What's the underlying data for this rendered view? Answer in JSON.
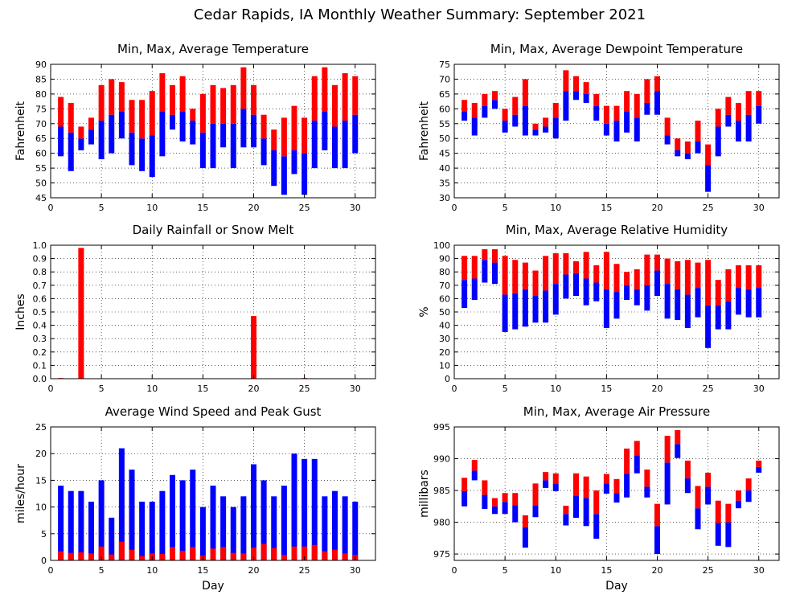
{
  "title": "Cedar Rapids, IA Monthly Weather Summary: September 2021",
  "colors": {
    "red": "#ff0000",
    "blue": "#0000ff"
  },
  "chart_data": [
    {
      "id": "temp",
      "type": "bar",
      "title": "Min, Max, Average Temperature",
      "ylabel": "Fahrenheit",
      "xlabel": "",
      "xlim": [
        0,
        32
      ],
      "ylim": [
        45,
        90
      ],
      "yticks": [
        45,
        50,
        55,
        60,
        65,
        70,
        75,
        80,
        85,
        90
      ],
      "xticks": [
        0,
        5,
        10,
        15,
        20,
        25,
        30
      ],
      "grid": true,
      "x": [
        1,
        2,
        3,
        4,
        5,
        6,
        7,
        8,
        9,
        10,
        11,
        12,
        13,
        14,
        15,
        16,
        17,
        18,
        19,
        20,
        21,
        22,
        23,
        24,
        25,
        26,
        27,
        28,
        29,
        30
      ],
      "min": [
        59,
        54,
        61,
        63,
        58,
        60,
        65,
        56,
        54,
        52,
        59,
        68,
        64,
        63,
        55,
        55,
        62,
        55,
        62,
        62,
        56,
        49,
        46,
        53,
        46,
        55,
        61,
        55,
        55,
        60
      ],
      "avg": [
        69,
        67,
        65,
        68,
        71,
        73,
        74,
        67,
        65,
        66,
        74,
        73,
        74,
        71,
        67,
        70,
        70,
        70,
        75,
        73,
        65,
        61,
        59,
        61,
        60,
        71,
        74,
        69,
        71,
        73
      ],
      "max": [
        79,
        77,
        69,
        72,
        83,
        85,
        84,
        78,
        78,
        81,
        87,
        83,
        86,
        75,
        80,
        83,
        82,
        83,
        89,
        83,
        73,
        68,
        72,
        76,
        72,
        86,
        89,
        83,
        87,
        86
      ]
    },
    {
      "id": "dew",
      "type": "bar",
      "title": "Min, Max, Average Dewpoint Temperature",
      "ylabel": "Fahrenheit",
      "xlabel": "",
      "xlim": [
        0,
        32
      ],
      "ylim": [
        30,
        75
      ],
      "yticks": [
        30,
        35,
        40,
        45,
        50,
        55,
        60,
        65,
        70,
        75
      ],
      "xticks": [
        0,
        5,
        10,
        15,
        20,
        25,
        30
      ],
      "grid": true,
      "x": [
        1,
        2,
        3,
        4,
        5,
        6,
        7,
        8,
        9,
        10,
        11,
        12,
        13,
        14,
        15,
        16,
        17,
        18,
        19,
        20,
        21,
        22,
        23,
        24,
        25,
        26,
        27,
        28,
        29,
        30
      ],
      "min": [
        56,
        51,
        57,
        60,
        52,
        54,
        51,
        51,
        52,
        50,
        56,
        63,
        62,
        56,
        51,
        49,
        52,
        49,
        58,
        58,
        48,
        44,
        43,
        45,
        32,
        44,
        54,
        49,
        49,
        55
      ],
      "avg": [
        59,
        57,
        61,
        63,
        56,
        58,
        61,
        53,
        54,
        57,
        66,
        66,
        65,
        61,
        55,
        56,
        59,
        57,
        62,
        66,
        51,
        46,
        45,
        49,
        41,
        54,
        58,
        56,
        58,
        61
      ],
      "max": [
        63,
        62,
        65,
        66,
        60,
        64,
        70,
        55,
        57,
        62,
        73,
        71,
        69,
        65,
        61,
        61,
        66,
        65,
        70,
        71,
        57,
        50,
        49,
        56,
        48,
        60,
        64,
        62,
        66,
        66
      ]
    },
    {
      "id": "rain",
      "type": "bar",
      "title": "Daily Rainfall or Snow Melt",
      "ylabel": "Inches",
      "xlabel": "",
      "xlim": [
        0,
        32
      ],
      "ylim": [
        0,
        1.0
      ],
      "yticks": [
        0.0,
        0.1,
        0.2,
        0.3,
        0.4,
        0.5,
        0.6,
        0.7,
        0.8,
        0.9,
        1.0
      ],
      "ytick_labels": [
        "0.0",
        "0.1",
        "0.2",
        "0.3",
        "0.4",
        "0.5",
        "0.6",
        "0.7",
        "0.8",
        "0.9",
        "1.0"
      ],
      "xticks": [
        0,
        5,
        10,
        15,
        20,
        25,
        30
      ],
      "grid": true,
      "x": [
        1,
        2,
        3,
        4,
        5,
        6,
        7,
        8,
        9,
        10,
        11,
        12,
        13,
        14,
        15,
        16,
        17,
        18,
        19,
        20,
        21,
        22,
        23,
        24,
        25,
        26,
        27,
        28,
        29,
        30
      ],
      "values": [
        0.005,
        0,
        0.98,
        0,
        0,
        0,
        0,
        0,
        0,
        0,
        0,
        0,
        0,
        0,
        0,
        0,
        0,
        0,
        0,
        0.47,
        0,
        0,
        0,
        0,
        0.005,
        0,
        0,
        0,
        0,
        0
      ]
    },
    {
      "id": "rh",
      "type": "bar",
      "title": "Min, Max, Average Relative Humidity",
      "ylabel": "%",
      "xlabel": "",
      "xlim": [
        0,
        32
      ],
      "ylim": [
        0,
        100
      ],
      "yticks": [
        0,
        10,
        20,
        30,
        40,
        50,
        60,
        70,
        80,
        90,
        100
      ],
      "xticks": [
        0,
        5,
        10,
        15,
        20,
        25,
        30
      ],
      "grid": true,
      "x": [
        1,
        2,
        3,
        4,
        5,
        6,
        7,
        8,
        9,
        10,
        11,
        12,
        13,
        14,
        15,
        16,
        17,
        18,
        19,
        20,
        21,
        22,
        23,
        24,
        25,
        26,
        27,
        28,
        29,
        30
      ],
      "min": [
        53,
        59,
        72,
        71,
        35,
        37,
        39,
        42,
        42,
        48,
        60,
        62,
        55,
        58,
        38,
        45,
        59,
        55,
        51,
        62,
        45,
        44,
        38,
        46,
        23,
        37,
        37,
        48,
        46,
        46
      ],
      "avg": [
        74,
        75,
        89,
        87,
        63,
        64,
        67,
        62,
        66,
        71,
        78,
        79,
        75,
        72,
        67,
        65,
        70,
        67,
        70,
        81,
        71,
        67,
        63,
        68,
        55,
        55,
        58,
        68,
        67,
        68
      ],
      "max": [
        92,
        92,
        97,
        97,
        92,
        89,
        87,
        81,
        92,
        94,
        94,
        88,
        95,
        85,
        95,
        86,
        80,
        82,
        93,
        93,
        90,
        88,
        89,
        87,
        89,
        74,
        82,
        85,
        85,
        85
      ]
    },
    {
      "id": "wind",
      "type": "bar",
      "title": "Average Wind Speed and Peak Gust",
      "ylabel": "miles/hour",
      "xlabel": "Day",
      "xlim": [
        0,
        32
      ],
      "ylim": [
        0,
        25
      ],
      "yticks": [
        0,
        5,
        10,
        15,
        20,
        25
      ],
      "xticks": [
        0,
        5,
        10,
        15,
        20,
        25,
        30
      ],
      "grid": true,
      "x": [
        1,
        2,
        3,
        4,
        5,
        6,
        7,
        8,
        9,
        10,
        11,
        12,
        13,
        14,
        15,
        16,
        17,
        18,
        19,
        20,
        21,
        22,
        23,
        24,
        25,
        26,
        27,
        28,
        29,
        30
      ],
      "peak_gust": [
        14,
        13,
        13,
        11,
        15,
        8,
        21,
        17,
        11,
        11,
        13,
        16,
        15,
        17,
        10,
        14,
        12,
        10,
        12,
        18,
        15,
        12,
        14,
        20,
        19,
        19,
        12,
        13,
        12,
        11
      ],
      "avg_speed": [
        1.7,
        1.4,
        1.5,
        1.3,
        2.6,
        1.1,
        3.5,
        2.0,
        0.8,
        1.3,
        1.2,
        2.5,
        1.8,
        2.5,
        0.9,
        2.2,
        2.5,
        1.4,
        1.3,
        2.4,
        3.1,
        2.3,
        1.0,
        2.6,
        2.6,
        2.9,
        1.7,
        2.0,
        1.3,
        1.0
      ]
    },
    {
      "id": "pres",
      "type": "bar",
      "title": "Min, Max, Average Air Pressure",
      "ylabel": "millibars",
      "xlabel": "Day",
      "xlim": [
        0,
        32
      ],
      "ylim": [
        974,
        995
      ],
      "yticks": [
        975,
        980,
        985,
        990,
        995
      ],
      "xticks": [
        0,
        5,
        10,
        15,
        20,
        25,
        30
      ],
      "grid": true,
      "x": [
        1,
        2,
        3,
        4,
        5,
        6,
        7,
        8,
        9,
        10,
        11,
        12,
        13,
        14,
        15,
        16,
        17,
        18,
        19,
        20,
        21,
        22,
        23,
        24,
        25,
        26,
        27,
        28,
        29,
        30
      ],
      "min": [
        982.5,
        986.6,
        982.1,
        981.3,
        981.3,
        980.0,
        976.0,
        980.8,
        985.4,
        984.9,
        979.5,
        980.7,
        979.4,
        977.4,
        984.5,
        983.1,
        983.9,
        987.7,
        983.9,
        975.0,
        982.8,
        990.1,
        984.6,
        978.9,
        982.8,
        976.3,
        976.1,
        982.2,
        983.2,
        987.8
      ],
      "avg": [
        984.9,
        988.1,
        984.3,
        982.5,
        983.2,
        982.7,
        979.2,
        982.6,
        986.6,
        986.1,
        981.3,
        984.2,
        983.8,
        981.3,
        986.1,
        984.6,
        987.6,
        990.5,
        985.6,
        979.4,
        989.4,
        992.3,
        986.9,
        982.2,
        985.6,
        979.9,
        980.0,
        983.4,
        985.0,
        988.7
      ],
      "max": [
        987.0,
        989.8,
        986.6,
        983.8,
        984.6,
        984.6,
        981.1,
        986.1,
        987.9,
        987.7,
        982.6,
        987.7,
        987.2,
        985.0,
        987.6,
        986.8,
        991.6,
        992.8,
        988.3,
        982.9,
        993.6,
        994.5,
        989.7,
        985.7,
        987.8,
        983.4,
        982.9,
        985.0,
        986.9,
        989.7
      ]
    }
  ]
}
